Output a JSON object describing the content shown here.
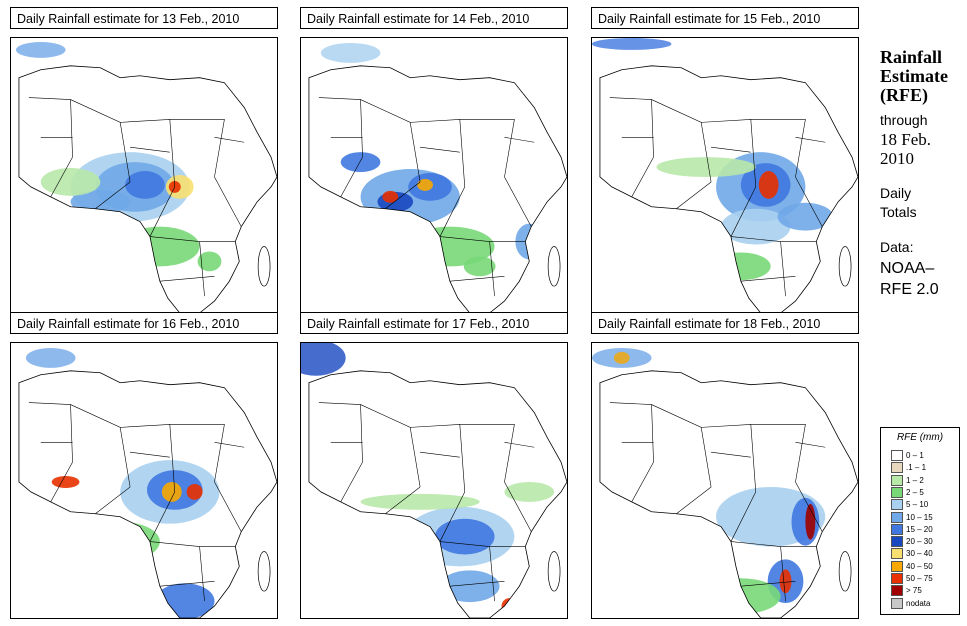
{
  "panels": [
    {
      "title": "Daily Rainfall estimate for  13 Feb., 2010"
    },
    {
      "title": "Daily Rainfall estimate for  14 Feb., 2010"
    },
    {
      "title": "Daily Rainfall estimate for  15 Feb., 2010"
    },
    {
      "title": "Daily Rainfall estimate for  16 Feb., 2010"
    },
    {
      "title": "Daily Rainfall estimate for  17 Feb., 2010"
    },
    {
      "title": "Daily Rainfall estimate for  18 Feb., 2010"
    }
  ],
  "sidebar": {
    "title_line1": "Rainfall",
    "title_line2": "Estimate",
    "title_line3": "(RFE)",
    "through_label": "through",
    "date_line1": "18 Feb.",
    "date_line2": "2010",
    "daily_line1": "Daily",
    "daily_line2": "Totals",
    "data_line1": "Data:",
    "data_line2": "NOAA–",
    "data_line3": "RFE 2.0"
  },
  "legend": {
    "title": "RFE (mm)",
    "items": [
      {
        "label": "0 – 1",
        "color": "#ffffff"
      },
      {
        "label": ".1 – 1",
        "color": "#e8d8c0"
      },
      {
        "label": "1 – 2",
        "color": "#b8e8a8"
      },
      {
        "label": "2 – 5",
        "color": "#78d878"
      },
      {
        "label": "5 – 10",
        "color": "#a8d0f0"
      },
      {
        "label": "10 – 15",
        "color": "#70a8e8"
      },
      {
        "label": "15 – 20",
        "color": "#4078e0"
      },
      {
        "label": "20 – 30",
        "color": "#1848c0"
      },
      {
        "label": "30 – 40",
        "color": "#f8e070"
      },
      {
        "label": "40 – 50",
        "color": "#f8a800"
      },
      {
        "label": "50 – 75",
        "color": "#e83000"
      },
      {
        "label": "> 75",
        "color": "#a00000"
      },
      {
        "label": "nodata",
        "color": "#c8c8c8"
      }
    ]
  }
}
